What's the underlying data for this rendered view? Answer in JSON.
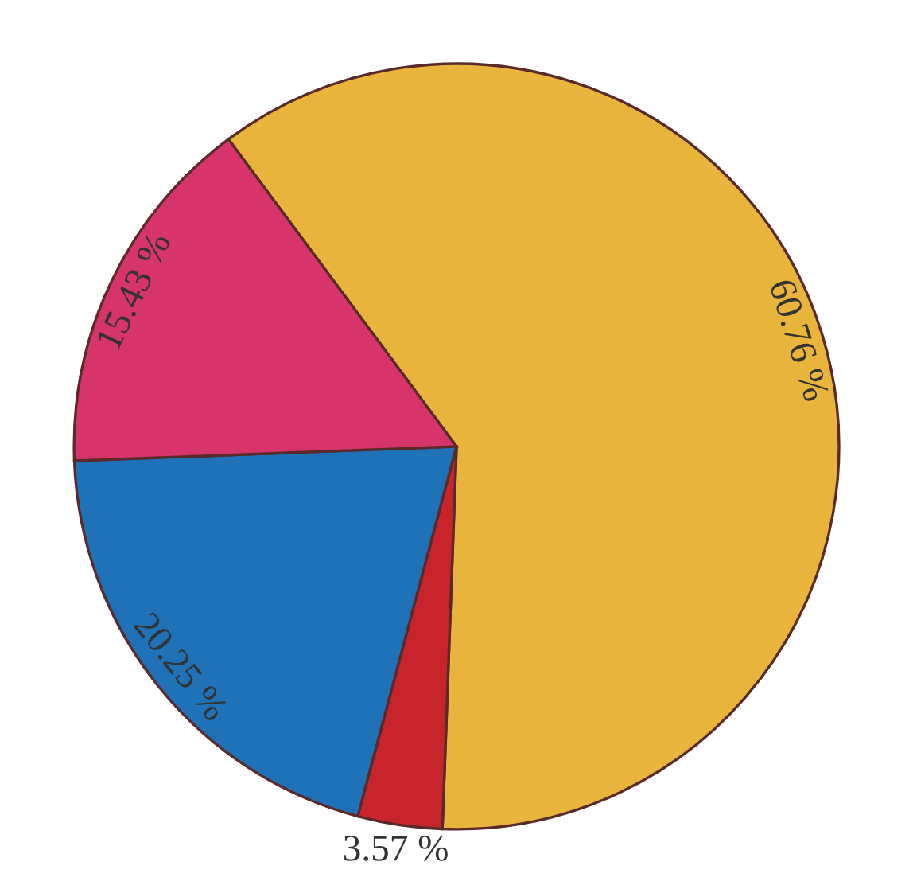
{
  "chart_data": {
    "type": "pie",
    "categories": [
      null,
      null,
      null,
      null
    ],
    "values": [
      60.76,
      3.57,
      20.25,
      15.43
    ],
    "value_labels": [
      "60.76 %",
      "3.57 %",
      "20.25 %",
      "15.43 %"
    ],
    "colors": [
      "#e9b43c",
      "#c8242c",
      "#1f72b8",
      "#d8346c"
    ]
  }
}
